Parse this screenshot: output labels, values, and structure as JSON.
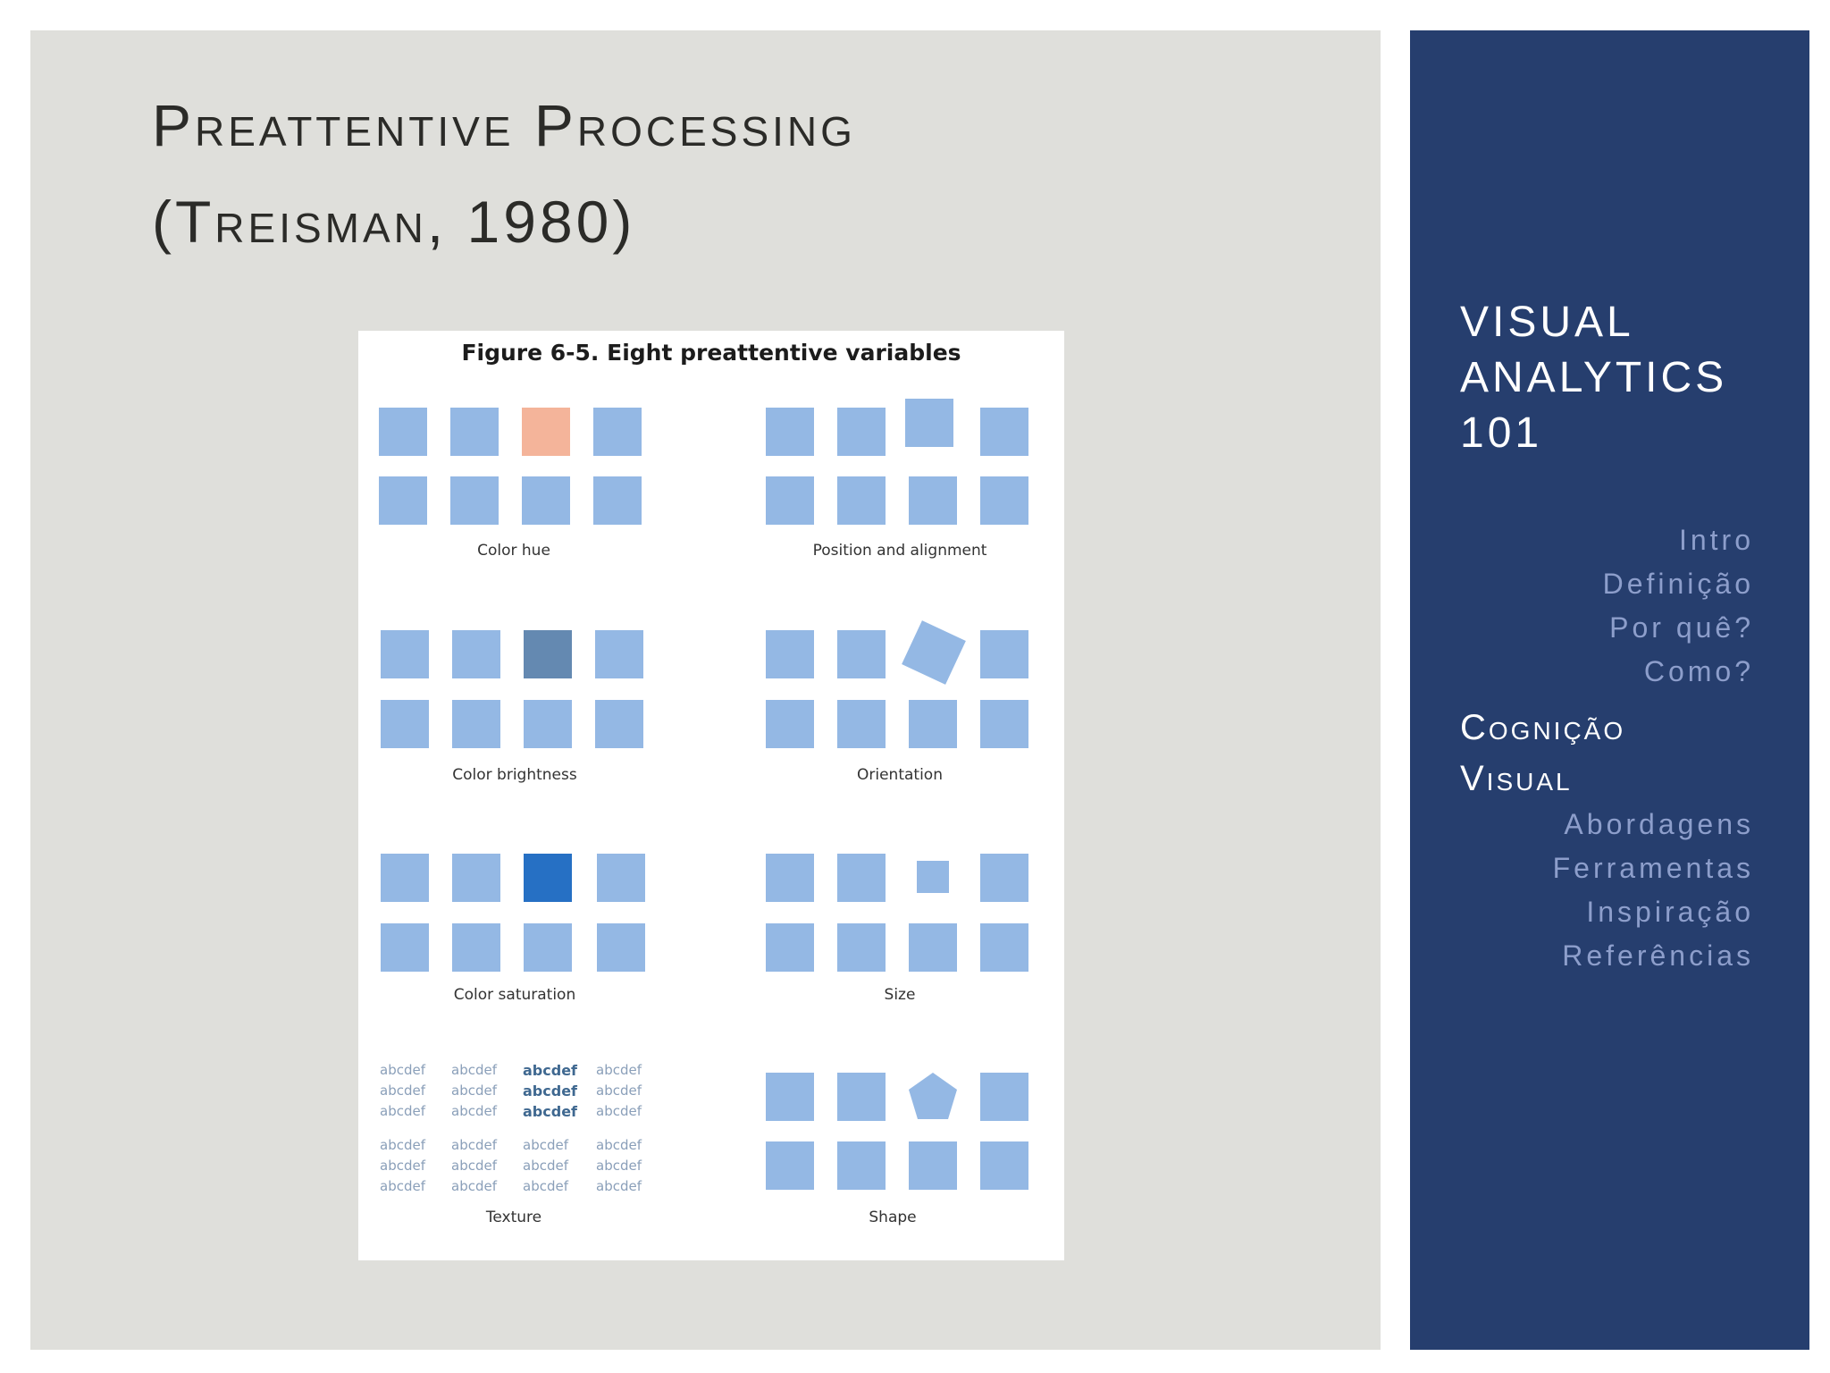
{
  "slide": {
    "title_line1": "Preattentive Processing",
    "title_line2": "(Treisman, 1980)"
  },
  "figure": {
    "title": "Figure 6-5. Eight preattentive variables",
    "labels": {
      "color_hue": "Color hue",
      "position": "Position and alignment",
      "brightness": "Color brightness",
      "orientation": "Orientation",
      "saturation": "Color saturation",
      "size": "Size",
      "texture": "Texture",
      "shape": "Shape"
    },
    "texture_word": "abcdef"
  },
  "sidebar": {
    "title_line1": "VISUAL",
    "title_line2": "ANALYTICS",
    "title_line3": "101",
    "nav": [
      "Intro",
      "Definição",
      "Por quê?",
      "Como?"
    ],
    "active_line1": "Cognição",
    "active_line2": "Visual",
    "nav_after": [
      "Abordagens",
      "Ferramentas",
      "Inspiração",
      "Referências"
    ]
  },
  "colors": {
    "main_bg": "#dfdfdb",
    "sidebar_bg": "#263e6e",
    "square": "#94b8e4",
    "hue_accent": "#f4b49a",
    "brightness_accent": "#6489b1",
    "saturation_accent": "#2670c4"
  }
}
